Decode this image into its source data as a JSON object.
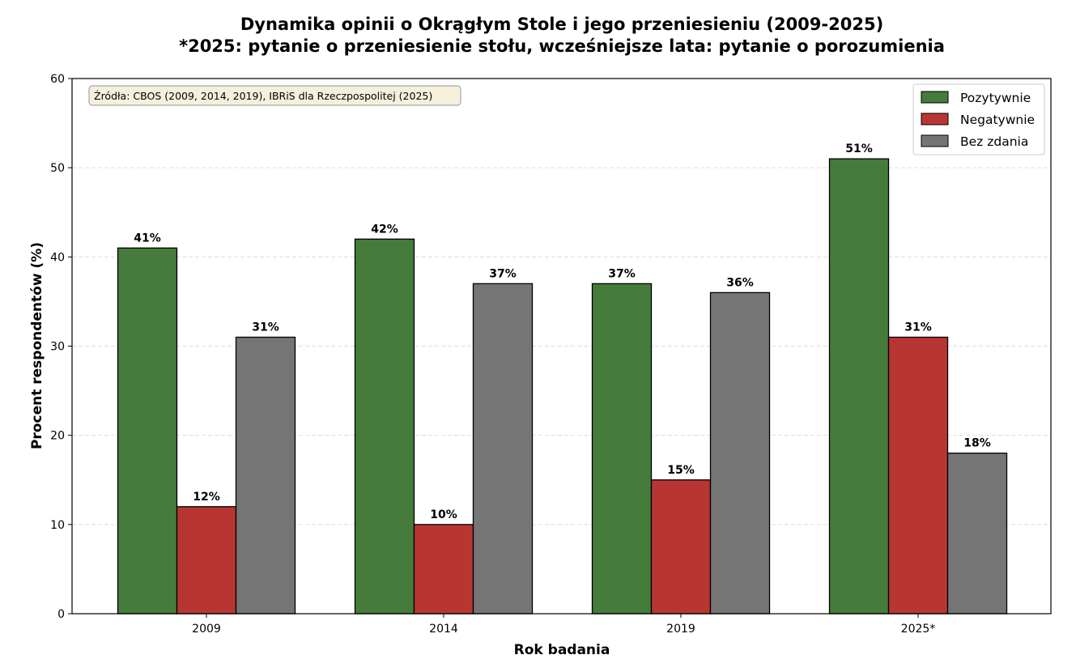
{
  "chart_data": {
    "type": "bar",
    "title": "Dynamika opinii o Okrągłym Stole i jego przeniesieniu (2009-2025)",
    "subtitle": "*2025: pytanie o przeniesienie stołu, wcześniejsze lata: pytanie o porozumienia",
    "xlabel": "Rok badania",
    "ylabel": "Procent respondentów (%)",
    "ylim": [
      0,
      60
    ],
    "yticks": [
      0,
      10,
      20,
      30,
      40,
      50,
      60
    ],
    "grid": "y-dashed",
    "categories": [
      "2009",
      "2014",
      "2019",
      "2025*"
    ],
    "series": [
      {
        "name": "Pozytywnie",
        "color": "#457b3b",
        "values": [
          41,
          42,
          37,
          51
        ],
        "labels": [
          "41%",
          "42%",
          "37%",
          "51%"
        ]
      },
      {
        "name": "Negatywnie",
        "color": "#b83632",
        "values": [
          12,
          10,
          15,
          31
        ],
        "labels": [
          "12%",
          "10%",
          "15%",
          "31%"
        ]
      },
      {
        "name": "Bez zdania",
        "color": "#757575",
        "values": [
          31,
          37,
          36,
          18
        ],
        "labels": [
          "31%",
          "37%",
          "36%",
          "18%"
        ]
      }
    ],
    "legend_position": "top-right",
    "annotation": "Źródła: CBOS (2009, 2014, 2019), IBRiS dla Rzeczpospolitej (2025)"
  }
}
